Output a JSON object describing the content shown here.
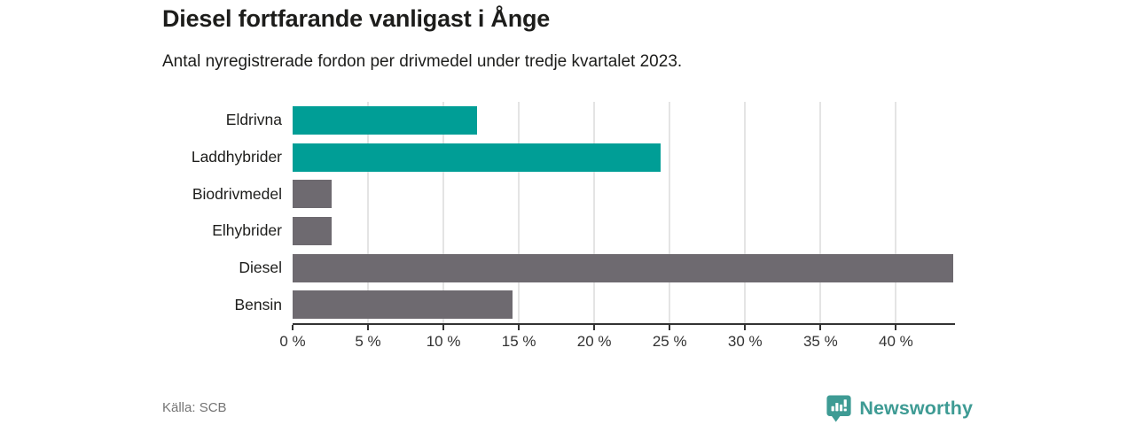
{
  "header": {
    "title": "Diesel fortfarande vanligast i Ånge",
    "subtitle": "Antal nyregistrerade fordon per drivmedel under tredje kvartalet 2023."
  },
  "footer": {
    "source": "Källa: SCB",
    "brand_name": "Newsworthy"
  },
  "colors": {
    "teal_bar": "#009e96",
    "gray_bar": "#6e6a70",
    "axis": "#333333",
    "gridline": "#e4e4e4",
    "text": "#1d1d1b",
    "muted_text": "#757575",
    "brand_teal": "#3e9b94"
  },
  "chart_data": {
    "type": "bar",
    "orientation": "horizontal",
    "title": "Diesel fortfarande vanligast i Ånge",
    "subtitle": "Antal nyregistrerade fordon per drivmedel under tredje kvartalet 2023.",
    "categories": [
      "Eldrivna",
      "Laddhybrider",
      "Biodrivmedel",
      "Elhybrider",
      "Diesel",
      "Bensin"
    ],
    "values": [
      12.2,
      24.4,
      2.6,
      2.6,
      43.8,
      14.6
    ],
    "bar_colors": [
      "#009e96",
      "#009e96",
      "#6e6a70",
      "#6e6a70",
      "#6e6a70",
      "#6e6a70"
    ],
    "unit": "%",
    "xlabel": "",
    "ylabel": "",
    "xlim": [
      0,
      43.8
    ],
    "ticks": [
      0,
      5,
      10,
      15,
      20,
      25,
      30,
      35,
      40
    ],
    "tick_labels": [
      "0 %",
      "5 %",
      "10 %",
      "15 %",
      "20 %",
      "25 %",
      "30 %",
      "35 %",
      "40 %"
    ],
    "grid": true,
    "legend": false
  }
}
